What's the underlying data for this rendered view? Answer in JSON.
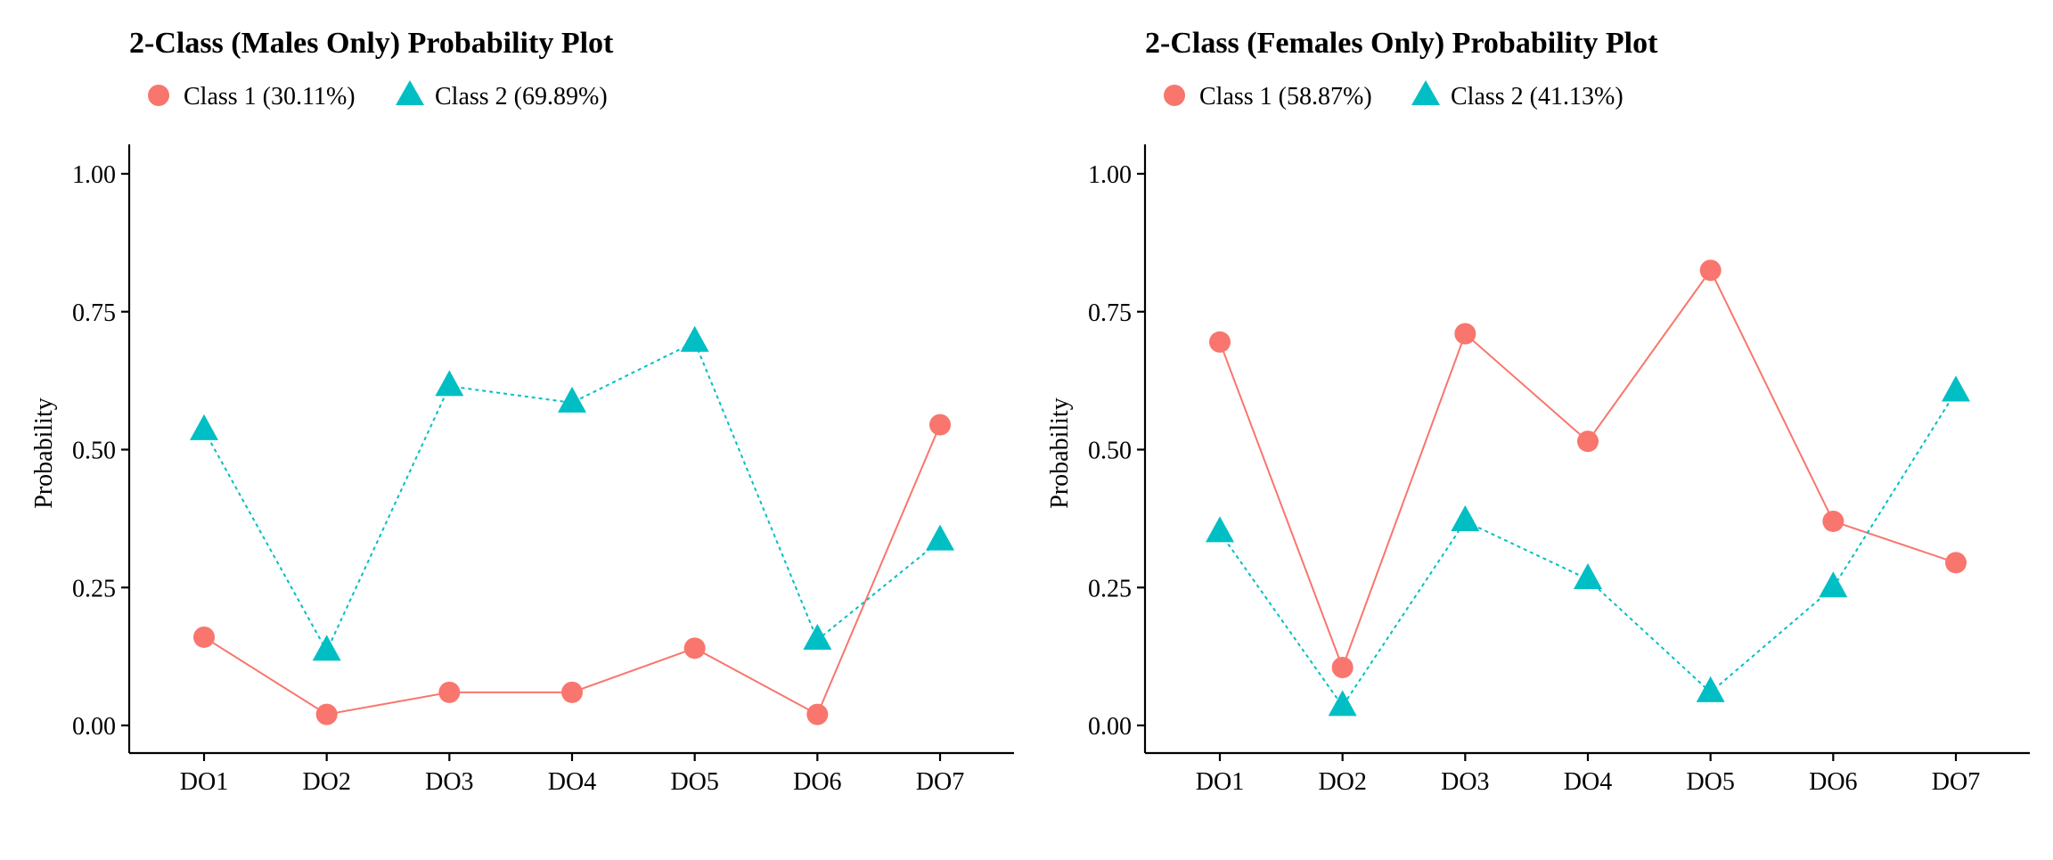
{
  "chart_data": [
    {
      "type": "line",
      "title": "2-Class (Males Only) Probability Plot",
      "xlabel": "",
      "ylabel": "Probability",
      "categories": [
        "DO1",
        "DO2",
        "DO3",
        "DO4",
        "DO5",
        "DO6",
        "DO7"
      ],
      "ylim": [
        0,
        1
      ],
      "yticks": [
        "0.00",
        "0.25",
        "0.50",
        "0.75",
        "1.00"
      ],
      "ytick_values": [
        0,
        0.25,
        0.5,
        0.75,
        1
      ],
      "grid": false,
      "legend_position": "top-left",
      "series": [
        {
          "name": "Class 1 (30.11%)",
          "marker": "circle",
          "line": "solid",
          "color": "#F8766D",
          "values": [
            0.16,
            0.02,
            0.06,
            0.06,
            0.14,
            0.02,
            0.545
          ]
        },
        {
          "name": "Class 2 (69.89%)",
          "marker": "triangle",
          "line": "dotted",
          "color": "#00BFC4",
          "values": [
            0.535,
            0.135,
            0.615,
            0.585,
            0.695,
            0.155,
            0.335
          ]
        }
      ]
    },
    {
      "type": "line",
      "title": "2-Class (Females Only) Probability Plot",
      "xlabel": "",
      "ylabel": "Probability",
      "categories": [
        "DO1",
        "DO2",
        "DO3",
        "DO4",
        "DO5",
        "DO6",
        "DO7"
      ],
      "ylim": [
        0,
        1
      ],
      "yticks": [
        "0.00",
        "0.25",
        "0.50",
        "0.75",
        "1.00"
      ],
      "ytick_values": [
        0,
        0.25,
        0.5,
        0.75,
        1
      ],
      "grid": false,
      "legend_position": "top-left",
      "series": [
        {
          "name": "Class 1 (58.87%)",
          "marker": "circle",
          "line": "solid",
          "color": "#F8766D",
          "values": [
            0.695,
            0.105,
            0.71,
            0.515,
            0.825,
            0.37,
            0.295
          ]
        },
        {
          "name": "Class 2 (41.13%)",
          "marker": "triangle",
          "line": "dotted",
          "color": "#00BFC4",
          "values": [
            0.35,
            0.035,
            0.37,
            0.265,
            0.06,
            0.25,
            0.605
          ]
        }
      ]
    }
  ]
}
